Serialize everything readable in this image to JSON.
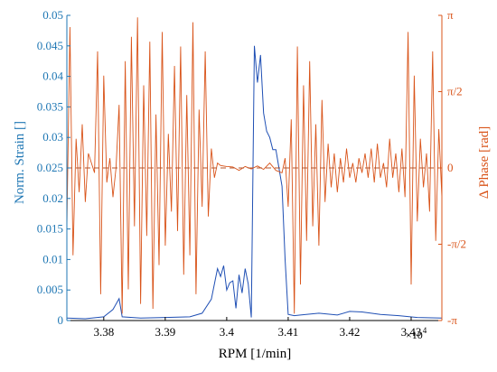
{
  "chart_data": {
    "type": "line",
    "title": "",
    "xlabel": "RPM [1/min]",
    "ylabel_left": "Norm. Strain []",
    "ylabel_right": "Δ Phase [rad]",
    "x_multiplier_label": "×10",
    "x_multiplier_exp": "4",
    "xlim": [
      3.374,
      3.435
    ],
    "ylim_left": [
      0,
      0.05
    ],
    "ylim_right": [
      -3.14159,
      3.14159
    ],
    "x_ticks": [
      3.38,
      3.39,
      3.4,
      3.41,
      3.42,
      3.43
    ],
    "x_tick_labels": [
      "3.38",
      "3.39",
      "3.4",
      "3.41",
      "3.42",
      "3.43"
    ],
    "y_left_ticks": [
      0,
      0.005,
      0.01,
      0.015,
      0.02,
      0.025,
      0.03,
      0.035,
      0.04,
      0.045,
      0.05
    ],
    "y_left_tick_labels": [
      "0",
      "0.005",
      "0.01",
      "0.015",
      "0.02",
      "0.025",
      "0.03",
      "0.035",
      "0.04",
      "0.045",
      "0.05"
    ],
    "y_right_tick_labels": [
      "-π",
      "-π/2",
      "0",
      "π/2",
      "π"
    ],
    "grid": false,
    "colors": {
      "left_axis": "#1f77b4",
      "strain": "#1f4fb4",
      "right_axis": "#d9541a",
      "phase": "#d9541a",
      "zero_line": "#b5532a"
    },
    "series": [
      {
        "axis": "left",
        "x": [
          3.374,
          3.377,
          3.38,
          3.3815,
          3.3825,
          3.383,
          3.386,
          3.39,
          3.394,
          3.396,
          3.3975,
          3.398,
          3.3985,
          3.399,
          3.3995,
          3.4,
          3.4005,
          3.401,
          3.4015,
          3.402,
          3.4025,
          3.403,
          3.4035,
          3.404,
          3.4045,
          3.405,
          3.4055,
          3.406,
          3.4065,
          3.407,
          3.4075,
          3.408,
          3.4085,
          3.409,
          3.4095,
          3.41,
          3.411,
          3.412,
          3.415,
          3.418,
          3.42,
          3.422,
          3.425,
          3.428,
          3.431,
          3.435
        ],
        "values": [
          0.0004,
          0.0003,
          0.0006,
          0.0018,
          0.0036,
          0.0006,
          0.0004,
          0.0005,
          0.0006,
          0.0012,
          0.0035,
          0.006,
          0.0085,
          0.0072,
          0.009,
          0.005,
          0.0062,
          0.0065,
          0.002,
          0.0075,
          0.0045,
          0.0085,
          0.006,
          0.0005,
          0.045,
          0.039,
          0.0435,
          0.034,
          0.031,
          0.03,
          0.028,
          0.028,
          0.025,
          0.022,
          0.01,
          0.001,
          0.0008,
          0.0009,
          0.0012,
          0.0009,
          0.0015,
          0.0014,
          0.001,
          0.0008,
          0.0005,
          0.0004
        ]
      },
      {
        "axis": "right",
        "x": [
          3.374,
          3.3745,
          3.375,
          3.3755,
          3.376,
          3.3765,
          3.377,
          3.3775,
          3.378,
          3.3785,
          3.379,
          3.3795,
          3.38,
          3.3805,
          3.381,
          3.3815,
          3.382,
          3.3825,
          3.383,
          3.3835,
          3.384,
          3.3845,
          3.385,
          3.3855,
          3.386,
          3.3865,
          3.387,
          3.3875,
          3.388,
          3.3885,
          3.389,
          3.3895,
          3.39,
          3.3905,
          3.391,
          3.3915,
          3.392,
          3.3925,
          3.393,
          3.3935,
          3.394,
          3.3945,
          3.395,
          3.3955,
          3.396,
          3.3965,
          3.397,
          3.3975,
          3.398,
          3.3985,
          3.399,
          3.4,
          3.401,
          3.402,
          3.403,
          3.404,
          3.405,
          3.406,
          3.407,
          3.408,
          3.409,
          3.4095,
          3.41,
          3.4105,
          3.411,
          3.4115,
          3.412,
          3.4125,
          3.413,
          3.4135,
          3.414,
          3.4145,
          3.415,
          3.4155,
          3.416,
          3.4165,
          3.417,
          3.4175,
          3.418,
          3.4185,
          3.419,
          3.4195,
          3.42,
          3.4205,
          3.421,
          3.4215,
          3.422,
          3.4225,
          3.423,
          3.4235,
          3.424,
          3.4245,
          3.425,
          3.4255,
          3.426,
          3.4265,
          3.427,
          3.4275,
          3.428,
          3.4285,
          3.429,
          3.4295,
          3.43,
          3.4305,
          3.431,
          3.4315,
          3.432,
          3.4325,
          3.433,
          3.4335,
          3.434,
          3.4345,
          3.435
        ],
        "values": [
          -1.2,
          2.9,
          -1.8,
          0.6,
          -0.5,
          0.9,
          -0.7,
          0.3,
          0.1,
          -0.1,
          2.4,
          -2.6,
          1.9,
          -0.3,
          0.2,
          -0.6,
          0.0,
          1.3,
          -3.0,
          2.2,
          -2.5,
          2.7,
          -1.2,
          3.1,
          -2.8,
          1.7,
          -1.4,
          2.6,
          -2.9,
          1.1,
          -2.0,
          2.8,
          -1.6,
          0.7,
          -0.9,
          2.1,
          -1.3,
          2.5,
          -2.2,
          1.5,
          -1.8,
          3.0,
          -2.6,
          1.2,
          -0.8,
          2.4,
          -1.0,
          0.4,
          -0.2,
          0.1,
          0.05,
          0.03,
          0.02,
          -0.05,
          0.03,
          -0.02,
          0.04,
          -0.03,
          0.1,
          -0.05,
          -0.1,
          0.2,
          -0.8,
          1.0,
          -3.0,
          2.5,
          -2.4,
          1.7,
          -1.5,
          2.2,
          -1.2,
          0.9,
          -1.6,
          1.4,
          -0.7,
          0.5,
          -0.4,
          0.3,
          -0.5,
          0.2,
          -0.3,
          0.4,
          -0.2,
          0.1,
          -0.3,
          0.2,
          -0.1,
          0.3,
          -0.2,
          0.4,
          -0.3,
          0.5,
          -0.2,
          0.1,
          -0.4,
          0.6,
          -0.2,
          0.3,
          -0.5,
          0.4,
          -0.6,
          2.8,
          -2.4,
          1.9,
          -1.1,
          0.6,
          -0.4,
          0.3,
          -0.9,
          2.4,
          -1.5,
          0.8,
          -0.6
        ]
      }
    ],
    "reference_lines": [
      {
        "axis": "right",
        "y": 0,
        "style": "dashed"
      }
    ]
  }
}
